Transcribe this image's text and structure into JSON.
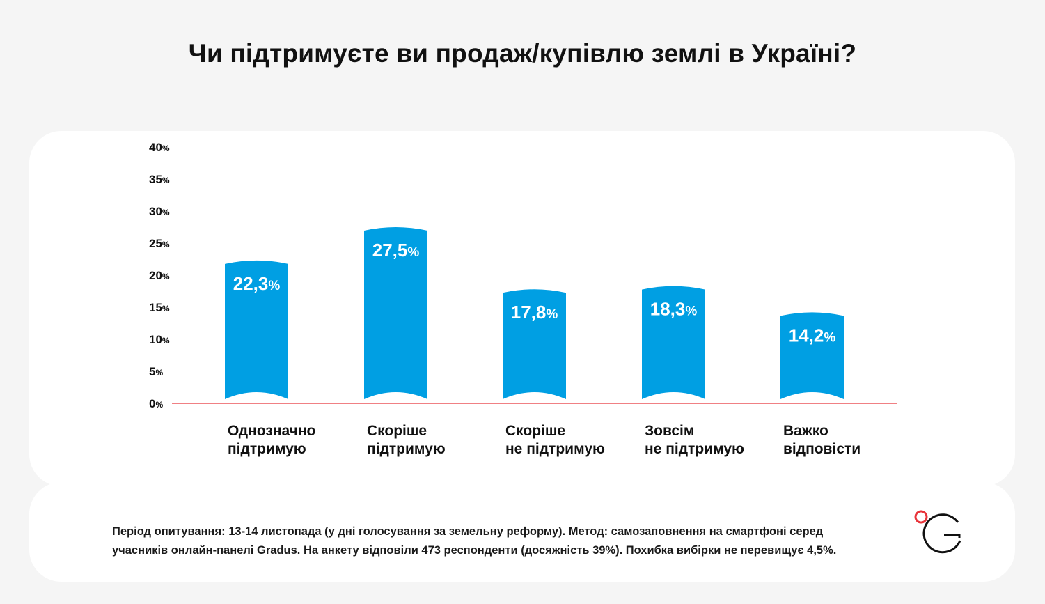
{
  "title": "Чи підтримуєте ви продаж/купівлю землі в Україні?",
  "chart_data": {
    "type": "bar",
    "categories": [
      [
        "Однозначно",
        "підтримую"
      ],
      [
        "Скоріше",
        "підтримую"
      ],
      [
        "Скоріше",
        "не підтримую"
      ],
      [
        "Зовсім",
        "не підтримую"
      ],
      [
        "Важко",
        "відповісти"
      ]
    ],
    "values": [
      22.3,
      27.5,
      17.8,
      18.3,
      14.2
    ],
    "value_labels": [
      "22,3",
      "27,5",
      "17,8",
      "18,3",
      "14,2"
    ],
    "value_suffix": "%",
    "y_ticks": [
      "0",
      "5",
      "10",
      "15",
      "20",
      "25",
      "30",
      "35",
      "40"
    ],
    "tick_suffix": "%",
    "ylim": [
      0,
      40
    ],
    "grid": false,
    "colors": {
      "bar": "#009fe3",
      "baseline": "#e8343a"
    }
  },
  "footnote": {
    "line1": "Період опитування: 13-14 листопада (у дні голосування за земельну реформу). Метод: самозаповнення на смартфоні серед",
    "line2": "учасників онлайн-панелі Gradus. На анкету відповіли 473 респонденти (досяжність 39%). Похибка вибірки не перевищує 4,5%."
  },
  "logo": {
    "icon": "gradus-logo-icon",
    "colors": {
      "dot": "#e8343a",
      "letter": "#111111"
    }
  }
}
